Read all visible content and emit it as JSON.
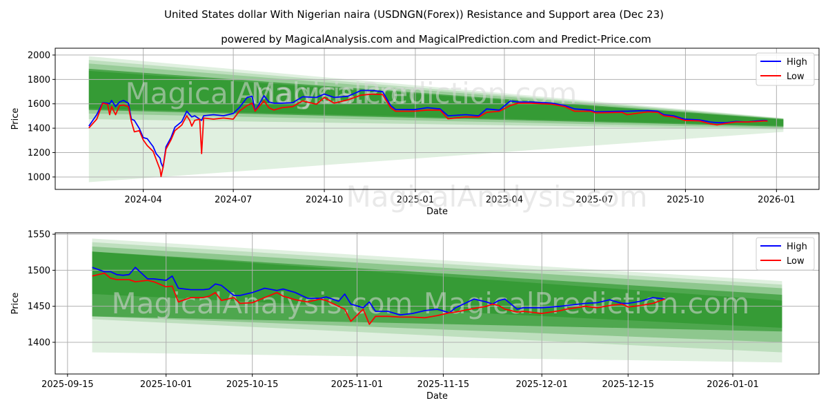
{
  "title": "United States dollar With Nigerian naira (USDNGN(Forex)) Resistance and Support area (Dec 23)",
  "subtitle": "powered by MagicalAnalysis.com and MagicalPrediction.com and Predict-Price.com",
  "watermarks": [
    "MagicalAnalysis.com",
    "MagicalPrediction.com"
  ],
  "colors": {
    "high": "#0000ff",
    "low": "#ff0000",
    "band": "#008000",
    "grid": "#b0b0b0"
  },
  "chart_data": [
    {
      "type": "line",
      "xlabel": "Date",
      "ylabel": "Price",
      "xlim": [
        "2024-01-03",
        "2026-02-13"
      ],
      "ylim": [
        898,
        2056
      ],
      "yticks": [
        1000,
        1200,
        1400,
        1600,
        1800,
        2000
      ],
      "xticks": [
        {
          "date": "2024-04-01",
          "label": "2024-04"
        },
        {
          "date": "2024-07-01",
          "label": "2024-07"
        },
        {
          "date": "2024-10-01",
          "label": "2024-10"
        },
        {
          "date": "2025-01-01",
          "label": "2025-01"
        },
        {
          "date": "2025-04-01",
          "label": "2025-04"
        },
        {
          "date": "2025-07-01",
          "label": "2025-07"
        },
        {
          "date": "2025-10-01",
          "label": "2025-10"
        },
        {
          "date": "2026-01-01",
          "label": "2026-01"
        }
      ],
      "grid": true,
      "legend": {
        "position": "top-right",
        "entries": [
          "High",
          "Low"
        ]
      },
      "bands": {
        "start": "2024-02-06",
        "end": "2026-01-08",
        "items": [
          {
            "start": [
              957,
              1990
            ],
            "end": [
              1370,
              1483
            ],
            "alpha": 0.12
          },
          {
            "start": [
              1474,
              1960
            ],
            "end": [
              1390,
              1480
            ],
            "alpha": 0.15
          },
          {
            "start": [
              1520,
              1930
            ],
            "end": [
              1400,
              1478
            ],
            "alpha": 0.2
          },
          {
            "start": [
              1549,
              1887
            ],
            "end": [
              1413,
              1474
            ],
            "alpha": 0.5
          },
          {
            "start": [
              1560,
              1870
            ],
            "end": [
              1420,
              1470
            ],
            "alpha": 0.3
          }
        ]
      },
      "x": [
        "2024-02-06",
        "2024-02-14",
        "2024-02-20",
        "2024-02-25",
        "2024-02-27",
        "2024-02-29",
        "2024-03-04",
        "2024-03-08",
        "2024-03-12",
        "2024-03-17",
        "2024-03-20",
        "2024-03-23",
        "2024-03-28",
        "2024-04-01",
        "2024-04-05",
        "2024-04-11",
        "2024-04-14",
        "2024-04-18",
        "2024-04-19",
        "2024-04-21",
        "2024-04-24",
        "2024-04-29",
        "2024-05-03",
        "2024-05-10",
        "2024-05-15",
        "2024-05-18",
        "2024-05-20",
        "2024-05-23",
        "2024-05-28",
        "2024-05-30",
        "2024-06-01",
        "2024-06-11",
        "2024-06-21",
        "2024-07-01",
        "2024-07-07",
        "2024-07-15",
        "2024-07-20",
        "2024-07-23",
        "2024-08-01",
        "2024-08-06",
        "2024-08-11",
        "2024-08-19",
        "2024-08-30",
        "2024-09-09",
        "2024-09-23",
        "2024-10-01",
        "2024-10-11",
        "2024-10-25",
        "2024-11-07",
        "2024-11-18",
        "2024-11-29",
        "2024-12-07",
        "2024-12-12",
        "2024-12-31",
        "2025-01-13",
        "2025-01-26",
        "2025-02-03",
        "2025-02-21",
        "2025-03-06",
        "2025-03-14",
        "2025-03-27",
        "2025-04-07",
        "2025-04-15",
        "2025-04-28",
        "2025-05-19",
        "2025-06-01",
        "2025-06-11",
        "2025-06-27",
        "2025-07-02",
        "2025-07-29",
        "2025-08-03",
        "2025-08-24",
        "2025-09-03",
        "2025-09-09",
        "2025-09-19",
        "2025-09-30",
        "2025-10-15",
        "2025-10-26",
        "2025-11-02",
        "2025-11-11",
        "2025-11-21",
        "2025-12-02",
        "2025-12-12",
        "2025-12-20",
        "2025-12-23"
      ],
      "series": [
        {
          "name": "High",
          "values": [
            1417,
            1511,
            1609,
            1605,
            1600,
            1628,
            1577,
            1615,
            1628,
            1605,
            1474,
            1464,
            1398,
            1323,
            1314,
            1248,
            1191,
            1154,
            1116,
            1079,
            1248,
            1323,
            1408,
            1455,
            1539,
            1511,
            1492,
            1502,
            1474,
            1464,
            1502,
            1511,
            1502,
            1521,
            1568,
            1652,
            1662,
            1539,
            1667,
            1615,
            1605,
            1605,
            1609,
            1658,
            1652,
            1680,
            1652,
            1662,
            1709,
            1709,
            1699,
            1586,
            1554,
            1552,
            1568,
            1558,
            1502,
            1511,
            1502,
            1558,
            1549,
            1624,
            1615,
            1615,
            1605,
            1586,
            1558,
            1549,
            1534,
            1539,
            1539,
            1545,
            1539,
            1511,
            1502,
            1474,
            1468,
            1451,
            1445,
            1445,
            1455,
            1451,
            1459,
            1464,
            1460
          ]
        },
        {
          "name": "Low",
          "values": [
            1402,
            1474,
            1605,
            1596,
            1511,
            1577,
            1511,
            1586,
            1590,
            1577,
            1455,
            1370,
            1380,
            1304,
            1257,
            1210,
            1145,
            1060,
            1004,
            1079,
            1229,
            1304,
            1380,
            1427,
            1502,
            1464,
            1417,
            1464,
            1474,
            1192,
            1483,
            1474,
            1483,
            1474,
            1539,
            1586,
            1605,
            1539,
            1624,
            1568,
            1549,
            1568,
            1577,
            1624,
            1596,
            1652,
            1605,
            1633,
            1671,
            1680,
            1676,
            1568,
            1539,
            1539,
            1549,
            1549,
            1477,
            1492,
            1492,
            1530,
            1539,
            1586,
            1605,
            1605,
            1596,
            1577,
            1539,
            1539,
            1526,
            1530,
            1511,
            1534,
            1530,
            1502,
            1492,
            1464,
            1460,
            1436,
            1427,
            1440,
            1451,
            1451,
            1455,
            1460,
            1458
          ]
        }
      ]
    },
    {
      "type": "line",
      "xlabel": "Date",
      "ylabel": "Price",
      "xlim": [
        "2025-09-13",
        "2026-01-15"
      ],
      "ylim": [
        1356,
        1552
      ],
      "yticks": [
        1400,
        1450,
        1500,
        1550
      ],
      "xticks": [
        {
          "date": "2025-09-15",
          "label": "2025-09-15"
        },
        {
          "date": "2025-10-01",
          "label": "2025-10-01"
        },
        {
          "date": "2025-10-15",
          "label": "2025-10-15"
        },
        {
          "date": "2025-11-01",
          "label": "2025-11-01"
        },
        {
          "date": "2025-11-15",
          "label": "2025-11-15"
        },
        {
          "date": "2025-12-01",
          "label": "2025-12-01"
        },
        {
          "date": "2025-12-15",
          "label": "2025-12-15"
        },
        {
          "date": "2026-01-01",
          "label": "2026-01-01"
        }
      ],
      "grid": true,
      "legend": {
        "position": "top-right",
        "entries": [
          "High",
          "Low"
        ]
      },
      "bands": {
        "start": "2025-09-19",
        "end": "2026-01-09",
        "items": [
          {
            "start": [
              1386,
              1544
            ],
            "end": [
              1372,
              1485
            ],
            "alpha": 0.12
          },
          {
            "start": [
              1432,
              1539
            ],
            "end": [
              1386,
              1480
            ],
            "alpha": 0.15
          },
          {
            "start": [
              1436,
              1533
            ],
            "end": [
              1400,
              1475
            ],
            "alpha": 0.25
          },
          {
            "start": [
              1436,
              1526
            ],
            "end": [
              1415,
              1466
            ],
            "alpha": 0.45
          },
          {
            "start": [
              1467,
              1526
            ],
            "end": [
              1420,
              1458
            ],
            "alpha": 0.3
          }
        ]
      },
      "x": [
        "2025-09-19",
        "2025-09-21",
        "2025-09-22",
        "2025-09-23",
        "2025-09-24",
        "2025-09-25",
        "2025-09-26",
        "2025-09-28",
        "2025-09-29",
        "2025-10-01",
        "2025-10-02",
        "2025-10-03",
        "2025-10-05",
        "2025-10-07",
        "2025-10-08",
        "2025-10-09",
        "2025-10-10",
        "2025-10-12",
        "2025-10-13",
        "2025-10-15",
        "2025-10-17",
        "2025-10-19",
        "2025-10-20",
        "2025-10-22",
        "2025-10-24",
        "2025-10-26",
        "2025-10-27",
        "2025-10-29",
        "2025-10-30",
        "2025-10-31",
        "2025-11-02",
        "2025-11-03",
        "2025-11-04",
        "2025-11-06",
        "2025-11-08",
        "2025-11-10",
        "2025-11-12",
        "2025-11-14",
        "2025-11-16",
        "2025-11-17",
        "2025-11-20",
        "2025-11-22",
        "2025-11-23",
        "2025-11-24",
        "2025-11-25",
        "2025-11-27",
        "2025-11-28",
        "2025-12-01",
        "2025-12-04",
        "2025-12-05",
        "2025-12-08",
        "2025-12-10",
        "2025-12-12",
        "2025-12-14",
        "2025-12-15",
        "2025-12-17",
        "2025-12-19",
        "2025-12-21"
      ],
      "series": [
        {
          "name": "High",
          "values": [
            1504,
            1498,
            1498,
            1494,
            1493,
            1494,
            1504,
            1488,
            1488,
            1486,
            1492,
            1475,
            1473,
            1473,
            1474,
            1481,
            1479,
            1465,
            1465,
            1469,
            1475,
            1472,
            1474,
            1469,
            1461,
            1461,
            1463,
            1457,
            1467,
            1453,
            1448,
            1456,
            1443,
            1443,
            1438,
            1440,
            1444,
            1446,
            1441,
            1448,
            1460,
            1456,
            1453,
            1458,
            1460,
            1446,
            1448,
            1448,
            1450,
            1451,
            1454,
            1455,
            1459,
            1454,
            1454,
            1457,
            1462,
            1460
          ]
        },
        {
          "name": "Low",
          "values": [
            1492,
            1496,
            1489,
            1487,
            1487,
            1487,
            1484,
            1486,
            1484,
            1477,
            1478,
            1456,
            1462,
            1462,
            1464,
            1469,
            1458,
            1462,
            1454,
            1455,
            1462,
            1469,
            1464,
            1459,
            1456,
            1460,
            1458,
            1450,
            1446,
            1429,
            1446,
            1425,
            1436,
            1436,
            1435,
            1435,
            1434,
            1437,
            1441,
            1442,
            1447,
            1450,
            1453,
            1451,
            1446,
            1442,
            1443,
            1440,
            1444,
            1446,
            1450,
            1448,
            1451,
            1453,
            1449,
            1451,
            1454,
            1460
          ]
        }
      ]
    }
  ]
}
